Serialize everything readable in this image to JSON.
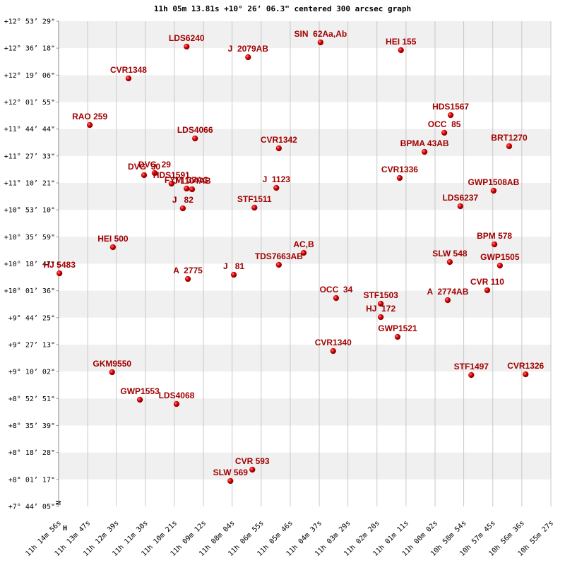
{
  "chart_data": {
    "type": "scatter",
    "title": "11h 05m 13.81s +10° 26’ 06.3\" centered 300 arcsec graph",
    "orientation_labels": [
      "N",
      "H"
    ],
    "color": "#cc0000",
    "label_color": "#a00000",
    "grid": true,
    "xlim": [
      40496,
      39327
    ],
    "ylim": [
      27845,
      46409
    ],
    "xticks": [
      {
        "value": 40496,
        "label": "11h 14m 56s"
      },
      {
        "value": 40427,
        "label": "11h 13m 47s"
      },
      {
        "value": 40359,
        "label": "11h 12m 39s"
      },
      {
        "value": 40290,
        "label": "11h 11m 30s"
      },
      {
        "value": 40221,
        "label": "11h 10m 21s"
      },
      {
        "value": 40152,
        "label": "11h 09m 12s"
      },
      {
        "value": 40084,
        "label": "11h 08m 04s"
      },
      {
        "value": 40015,
        "label": "11h 06m 55s"
      },
      {
        "value": 39946,
        "label": "11h 05m 46s"
      },
      {
        "value": 39877,
        "label": "11h 04m 37s"
      },
      {
        "value": 39809,
        "label": "11h 03m 29s"
      },
      {
        "value": 39740,
        "label": "11h 02m 20s"
      },
      {
        "value": 39671,
        "label": "11h 01m 11s"
      },
      {
        "value": 39602,
        "label": "11h 00m 02s"
      },
      {
        "value": 39534,
        "label": "10h 58m 54s"
      },
      {
        "value": 39465,
        "label": "10h 57m 45s"
      },
      {
        "value": 39396,
        "label": "10h 56m 36s"
      },
      {
        "value": 39327,
        "label": "10h 55m 27s"
      }
    ],
    "yticks": [
      {
        "value": 27845,
        "label": "+7° 44’ 05\""
      },
      {
        "value": 28877,
        "label": "+8° 01’ 17\""
      },
      {
        "value": 29908,
        "label": "+8° 18’ 28\""
      },
      {
        "value": 30939,
        "label": "+8° 35’ 39\""
      },
      {
        "value": 31971,
        "label": "+8° 52’ 51\""
      },
      {
        "value": 33002,
        "label": "+9° 10’ 02\""
      },
      {
        "value": 34033,
        "label": "+9° 27’ 13\""
      },
      {
        "value": 35065,
        "label": "+9° 44’ 25\""
      },
      {
        "value": 36096,
        "label": "+10° 01’ 36\""
      },
      {
        "value": 37127,
        "label": "+10° 18’ 47\""
      },
      {
        "value": 38159,
        "label": "+10° 35’ 59\""
      },
      {
        "value": 39190,
        "label": "+10° 53’ 10\""
      },
      {
        "value": 40221,
        "label": "+11° 10’ 21\""
      },
      {
        "value": 41253,
        "label": "+11° 27’ 33\""
      },
      {
        "value": 42284,
        "label": "+11° 44’ 44\""
      },
      {
        "value": 43315,
        "label": "+12° 01’ 55\""
      },
      {
        "value": 44346,
        "label": "+12° 19’ 06\""
      },
      {
        "value": 45378,
        "label": "+12° 36’ 18\""
      },
      {
        "value": 46409,
        "label": "+12° 53’ 29\""
      }
    ],
    "point_labels": [
      "LDS6240",
      "J  2079AB",
      "SIN  62Aa,Ab",
      "HEI 155",
      "CVR1348",
      "HDS1567",
      "OCC  85",
      "RAO 259",
      "LDS4066",
      "BRT1270",
      "CVR1342",
      "BPMA 43AB",
      "DVG  30",
      "DVG  29",
      "HDS1591",
      "FYM  37AC",
      "J 1104AB",
      "CVR1336",
      "J  1123",
      "GWP1508AB",
      "J   82",
      "STF1511",
      "LDS6237",
      "HEI 500",
      "BPM 578",
      "AC,B",
      "TDS7663AB",
      "SLW 548",
      "HJ 5483",
      "GWP1505",
      "J   81",
      "A  2775",
      "CVR 110",
      "A  2774AB",
      "OCC  34",
      "STF1503",
      "HJ  172",
      "GWP1521",
      "CVR1340",
      "GKM9550",
      "STF1497",
      "CVR1326",
      "GWP1553",
      "LDS4068",
      "CVR 593",
      "SLW 569"
    ],
    "x": [
      40192,
      40046,
      39874,
      39683,
      40330,
      39565,
      39580,
      40422,
      40172,
      39426,
      39973,
      39627,
      40293,
      40268,
      40228,
      40192,
      40179,
      39686,
      39979,
      39463,
      40201,
      40031,
      39542,
      40367,
      39461,
      39914,
      39973,
      39567,
      40494,
      39448,
      40080,
      40189,
      39478,
      39572,
      39837,
      39731,
      39731,
      39691,
      39844,
      40369,
      39516,
      39387,
      40303,
      40216,
      40036,
      40088
    ],
    "values": [
      45436,
      45031,
      45598,
      45301,
      44220,
      42815,
      42140,
      42437,
      41923,
      41626,
      41545,
      41410,
      40518,
      40599,
      40194,
      40005,
      39978,
      40410,
      40032,
      39924,
      39248,
      39275,
      39329,
      37762,
      37870,
      37546,
      37087,
      37195,
      36762,
      37059,
      36708,
      36546,
      36114,
      35735,
      35816,
      35600,
      35087,
      34330,
      33790,
      32979,
      32871,
      32898,
      31925,
      31763,
      29250,
      28818
    ]
  }
}
